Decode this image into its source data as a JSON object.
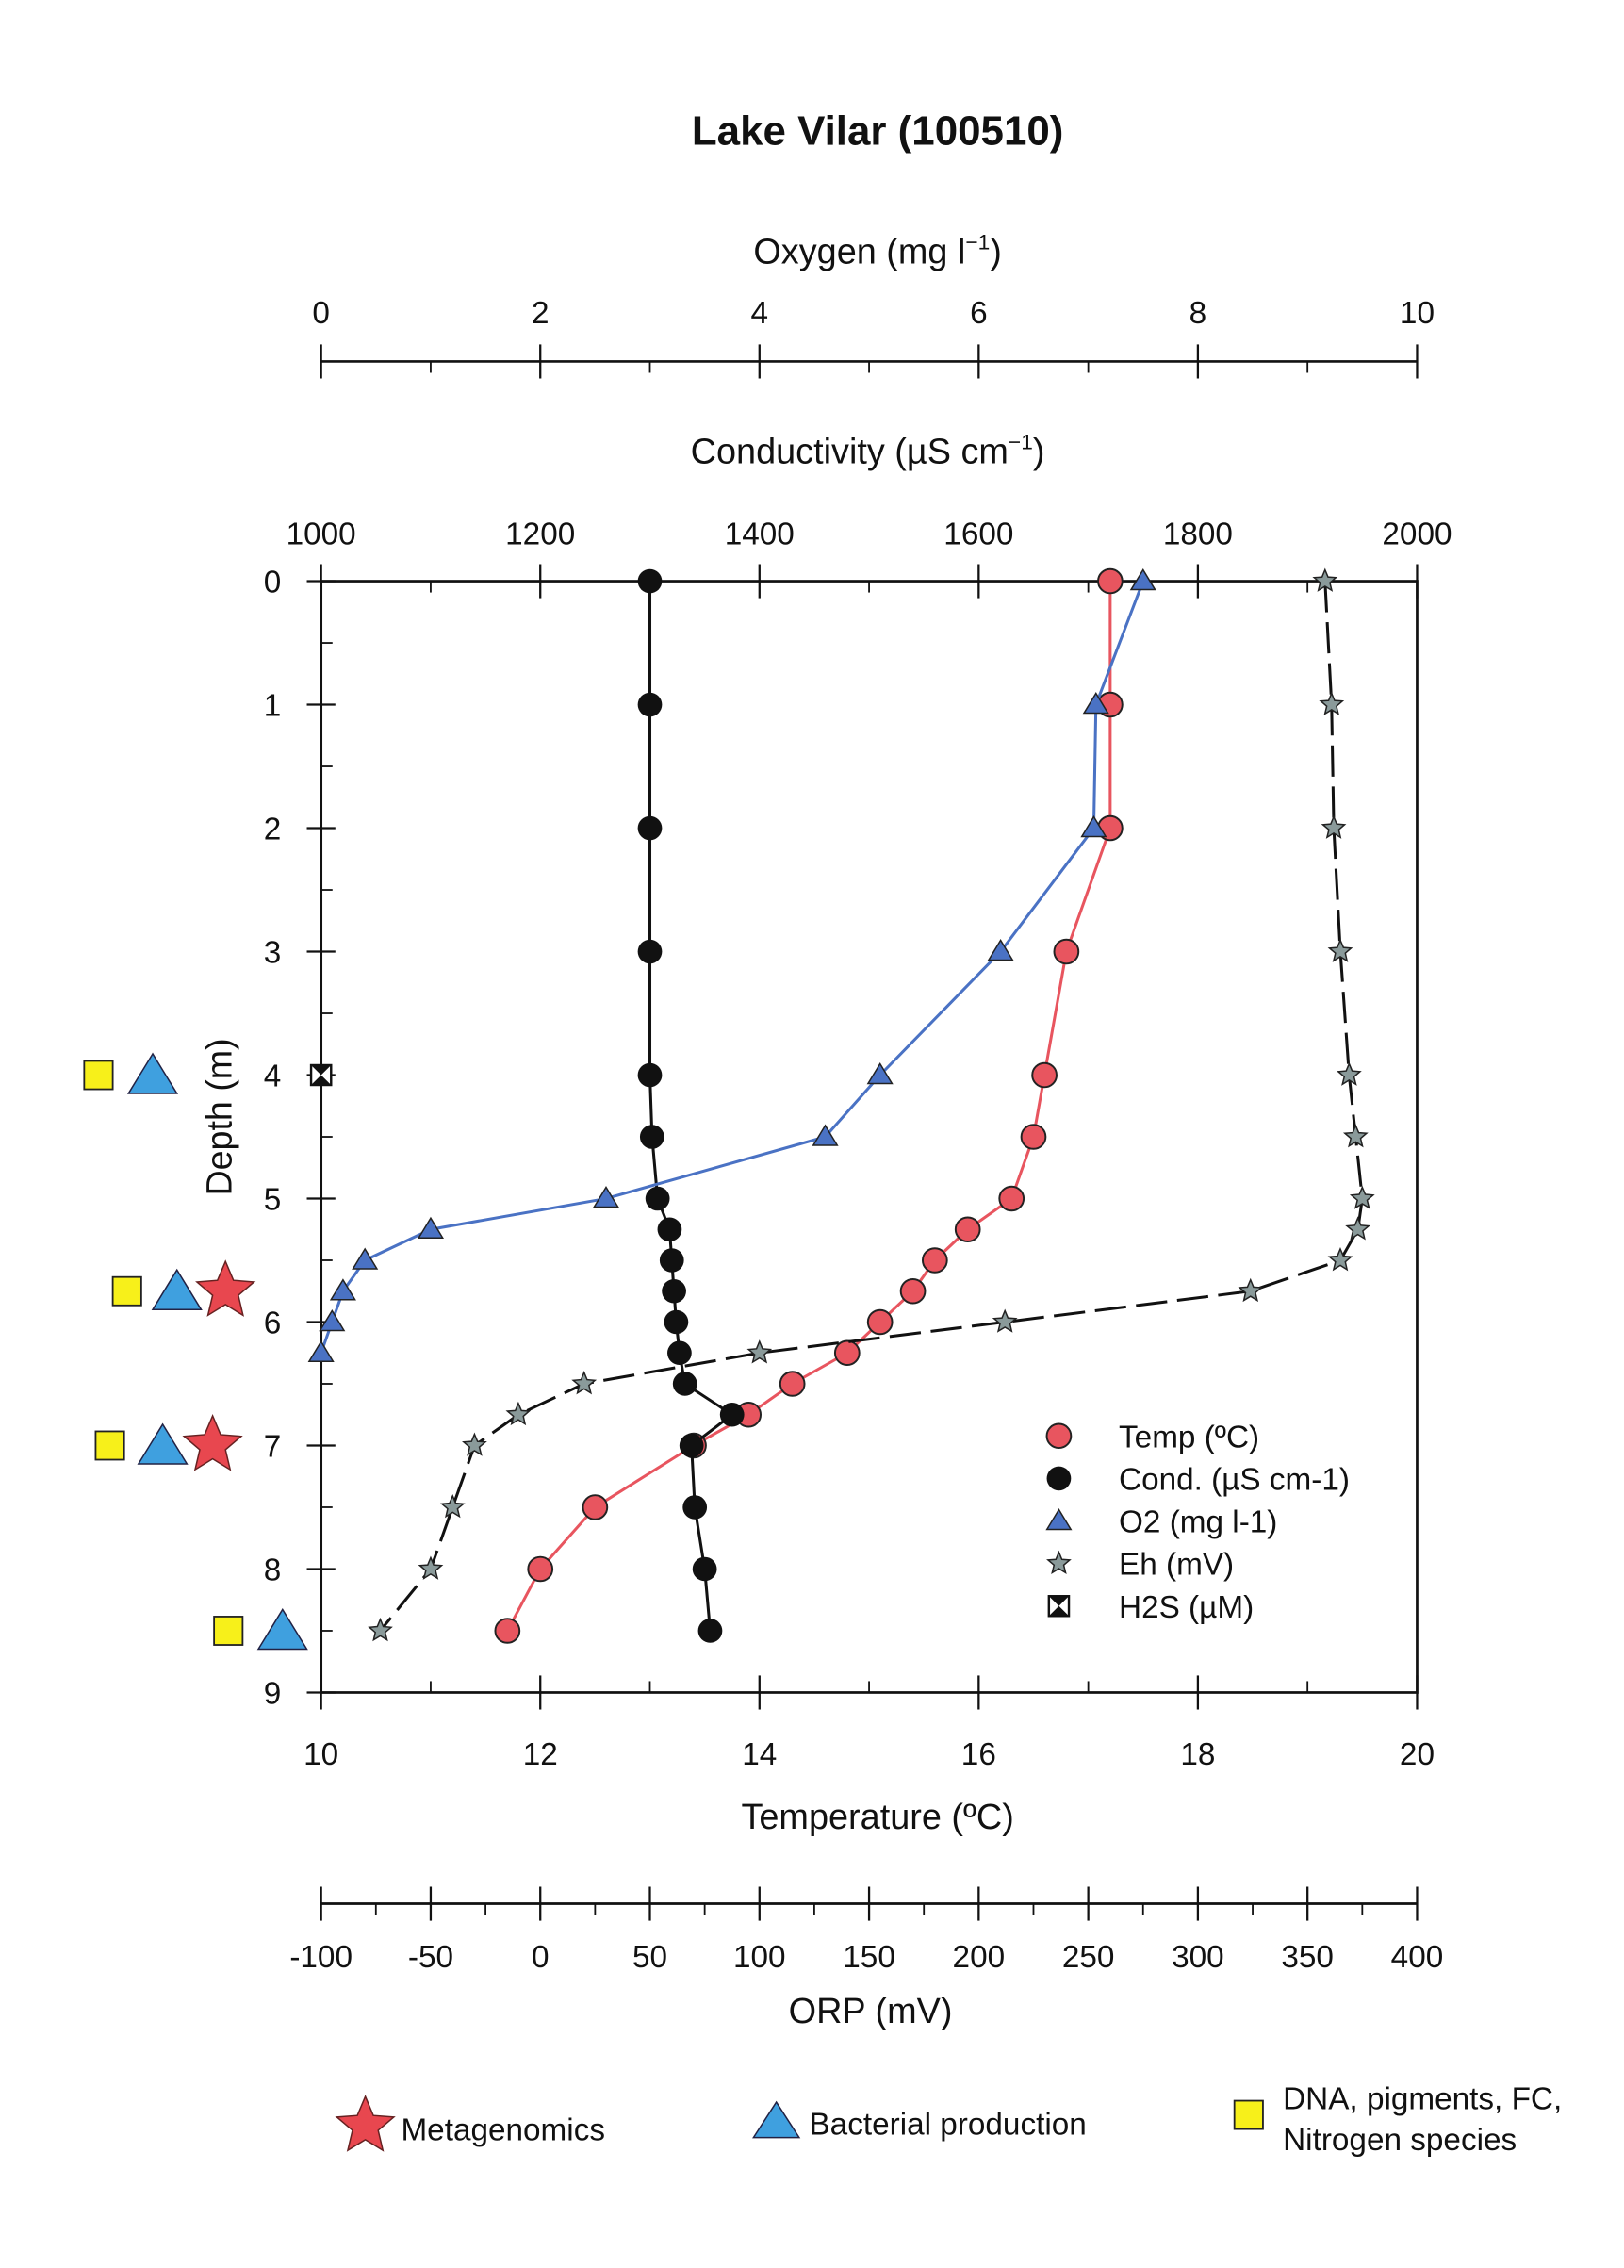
{
  "chart_data": {
    "type": "line",
    "title": "Lake Vilar (100510)",
    "y_axis": {
      "label": "Depth (m)",
      "range": [
        0,
        9
      ],
      "inverted": true,
      "ticks": [
        "0",
        "1",
        "2",
        "3",
        "4",
        "5",
        "6",
        "7",
        "8",
        "9"
      ]
    },
    "axes": {
      "oxygen": {
        "label": "Oxygen (mg l",
        "label_sup": "−1",
        "label_end": ")",
        "range": [
          0,
          10
        ],
        "ticks": [
          "0",
          "2",
          "4",
          "6",
          "8",
          "10"
        ],
        "position": "top-outer"
      },
      "conductivity": {
        "label": "Conductivity (µS cm",
        "label_sup": "−1",
        "label_end": ")",
        "range": [
          1000,
          2000
        ],
        "ticks": [
          "1000",
          "1200",
          "1400",
          "1600",
          "1800",
          "2000"
        ],
        "position": "top"
      },
      "temperature": {
        "label": "Temperature (ºC)",
        "range": [
          10,
          20
        ],
        "ticks": [
          "10",
          "12",
          "14",
          "16",
          "18",
          "20"
        ],
        "position": "bottom"
      },
      "orp": {
        "label": "ORP (mV)",
        "range": [
          -100,
          400
        ],
        "ticks": [
          "-100",
          "-50",
          "0",
          "50",
          "100",
          "150",
          "200",
          "250",
          "300",
          "350",
          "400"
        ],
        "position": "bottom-outer"
      }
    },
    "series": [
      {
        "name": "Temp (ºC)",
        "axis": "temperature",
        "marker": "circle",
        "color": "#e8555f",
        "line": "solid",
        "depth": [
          0,
          1,
          2,
          3,
          4,
          4.5,
          5,
          5.25,
          5.5,
          5.75,
          6,
          6.25,
          6.5,
          6.75,
          7,
          7.5,
          8,
          8.5
        ],
        "values": [
          17.2,
          17.2,
          17.2,
          16.8,
          16.6,
          16.5,
          16.3,
          15.9,
          15.6,
          15.4,
          15.1,
          14.8,
          14.3,
          13.9,
          13.4,
          12.5,
          12.0,
          11.7
        ]
      },
      {
        "name": "Cond. (µS cm-1)",
        "axis": "conductivity",
        "marker": "filled-circle",
        "color": "#111111",
        "line": "solid",
        "depth": [
          0,
          1,
          2,
          3,
          4,
          4.5,
          5,
          5.25,
          5.5,
          5.75,
          6,
          6.25,
          6.5,
          6.75,
          7,
          7.5,
          8,
          8.5
        ],
        "values": [
          1300,
          1300,
          1300,
          1300,
          1300,
          1302,
          1307,
          1318,
          1320,
          1322,
          1324,
          1327,
          1332,
          1375,
          1338,
          1341,
          1350,
          1355
        ]
      },
      {
        "name": "O2 (mg l-1)",
        "axis": "oxygen",
        "marker": "triangle",
        "color": "#4a72c4",
        "line": "solid",
        "depth": [
          0,
          1,
          2,
          3,
          4,
          4.5,
          5,
          5.25,
          5.5,
          5.75,
          6,
          6.25
        ],
        "values": [
          7.5,
          7.07,
          7.05,
          6.2,
          5.1,
          4.6,
          2.6,
          1.0,
          0.4,
          0.2,
          0.1,
          0.0
        ]
      },
      {
        "name": "Eh (mV)",
        "axis": "orp",
        "marker": "star",
        "color": "#8a9a9a",
        "line": "dashed",
        "depth": [
          0,
          1,
          2,
          3,
          4,
          4.5,
          5,
          5.25,
          5.5,
          5.75,
          6,
          6.25,
          6.5,
          6.75,
          7,
          7.5,
          8,
          8.5
        ],
        "values": [
          358,
          361,
          362,
          365,
          369,
          372,
          375,
          373,
          365,
          324,
          212,
          100,
          20,
          -10,
          -30,
          -40,
          -50,
          -73
        ]
      },
      {
        "name": "H2S (µM)",
        "axis": "temperature",
        "marker": "hourglass-square",
        "color": "#111111",
        "line": "none",
        "depth": [
          4
        ],
        "values": [
          10
        ]
      }
    ],
    "legend_position": "lower-right",
    "sampling_markers": {
      "depths": [
        {
          "depth": 4,
          "kinds": [
            "square",
            "triangle"
          ]
        },
        {
          "depth": 5.75,
          "kinds": [
            "square",
            "triangle",
            "star"
          ]
        },
        {
          "depth": 7,
          "kinds": [
            "square",
            "triangle",
            "star"
          ]
        },
        {
          "depth": 8.5,
          "kinds": [
            "square",
            "triangle"
          ]
        }
      ],
      "legend": [
        {
          "kind": "star",
          "label": "Metagenomics",
          "color": "#e8474f"
        },
        {
          "kind": "triangle",
          "label": "Bacterial production",
          "color": "#3fa0df"
        },
        {
          "kind": "square",
          "label_line1": "DNA, pigments, FC,",
          "label_line2": "Nitrogen species",
          "color": "#f7f01a"
        }
      ]
    }
  }
}
